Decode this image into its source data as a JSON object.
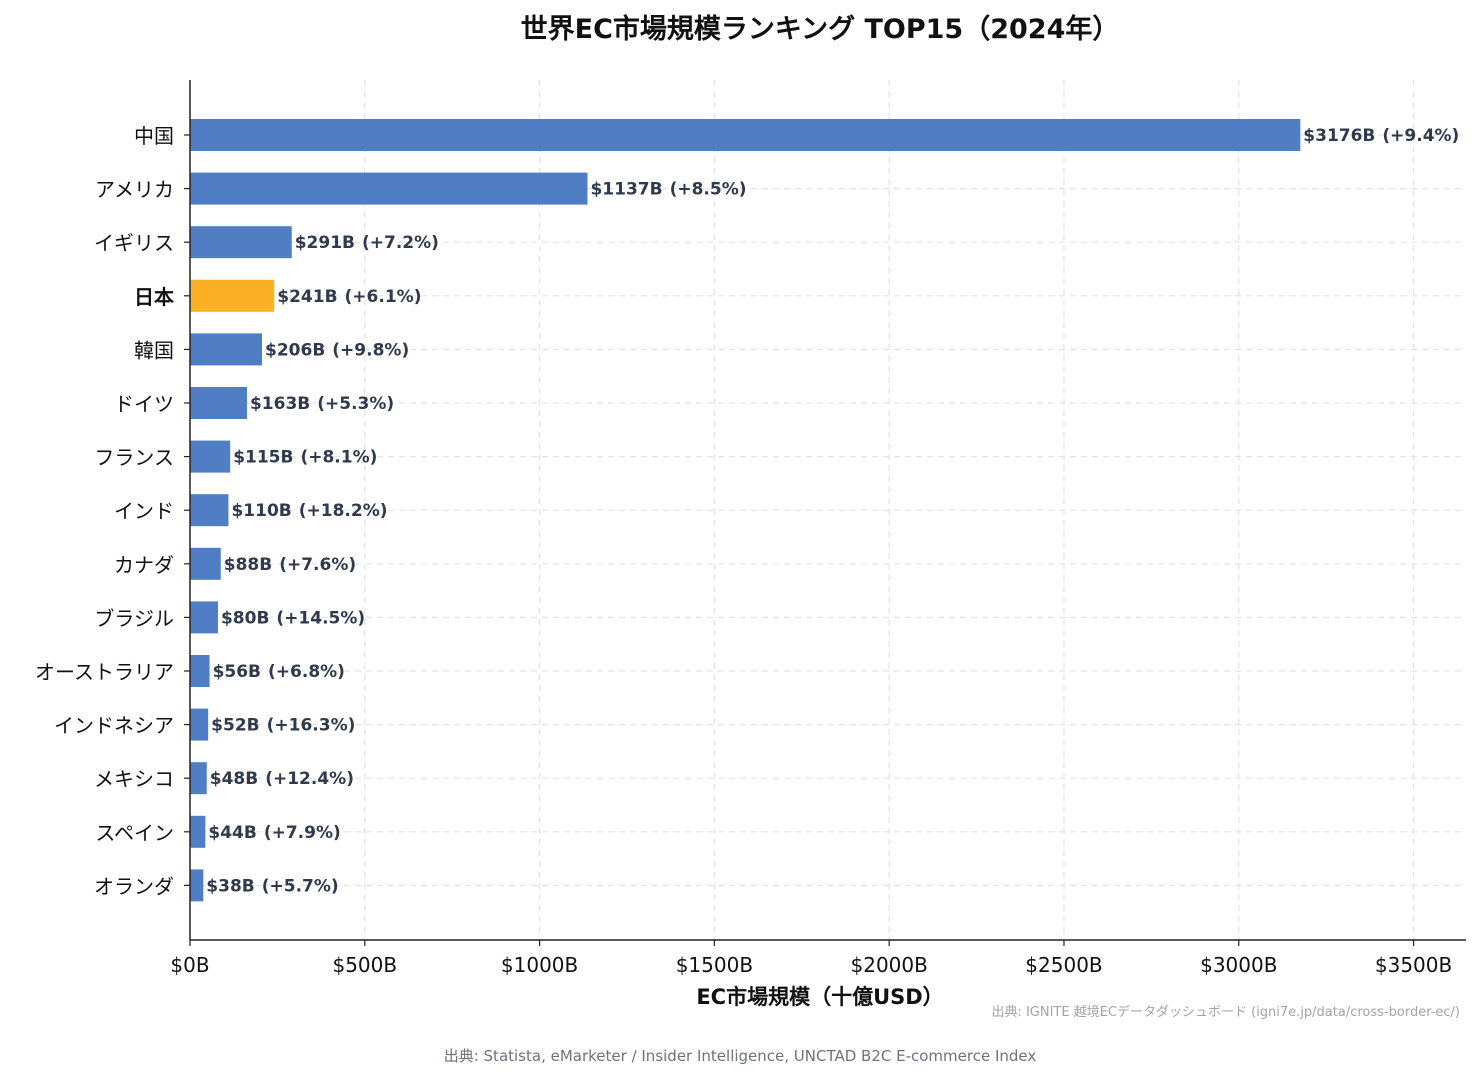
{
  "chart_data": {
    "type": "bar",
    "orientation": "horizontal",
    "title": "世界EC市場規模ランキング TOP15（2024年）",
    "xlabel": "EC市場規模（十億USD）",
    "ylabel": "",
    "xlim": [
      0,
      3650
    ],
    "x_ticks": [
      0,
      500,
      1000,
      1500,
      2000,
      2500,
      3000,
      3500
    ],
    "x_tick_labels": [
      "$0B",
      "$500B",
      "$1000B",
      "$1500B",
      "$2000B",
      "$2500B",
      "$3000B",
      "$3500B"
    ],
    "grid": true,
    "categories": [
      "中国",
      "アメリカ",
      "イギリス",
      "日本",
      "韓国",
      "ドイツ",
      "フランス",
      "インド",
      "カナダ",
      "ブラジル",
      "オーストラリア",
      "インドネシア",
      "メキシコ",
      "スペイン",
      "オランダ"
    ],
    "values": [
      3176,
      1137,
      291,
      241,
      206,
      163,
      115,
      110,
      88,
      80,
      56,
      52,
      48,
      44,
      38
    ],
    "value_labels": [
      "$3176B",
      "$1137B",
      "$291B",
      "$241B",
      "$206B",
      "$163B",
      "$115B",
      "$110B",
      "$88B",
      "$80B",
      "$56B",
      "$52B",
      "$48B",
      "$44B",
      "$38B"
    ],
    "growth_labels": [
      "(+9.4%)",
      "(+8.5%)",
      "(+7.2%)",
      "(+6.1%)",
      "(+9.8%)",
      "(+5.3%)",
      "(+8.1%)",
      "(+18.2%)",
      "(+7.6%)",
      "(+14.5%)",
      "(+6.8%)",
      "(+16.3%)",
      "(+12.4%)",
      "(+7.9%)",
      "(+5.7%)"
    ],
    "highlight_index": 3,
    "colors": {
      "bar": "#4f7ec4",
      "highlight": "#fbb123",
      "label": "#2f3a4d",
      "grid": "#e3e3e3",
      "axis": "#222222"
    },
    "watermark": "出典: IGNITE 越境ECデータダッシュボード (igni7e.jp/data/cross-border-ec/)",
    "source": "出典: Statista, eMarketer / Insider Intelligence, UNCTAD B2C E-commerce Index"
  }
}
